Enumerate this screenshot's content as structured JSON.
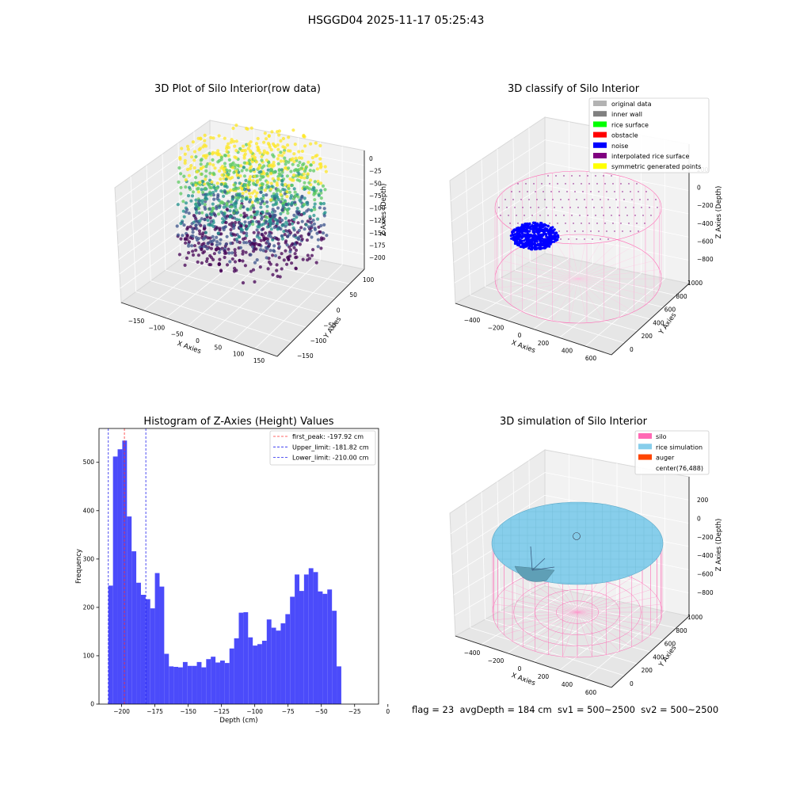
{
  "figure": {
    "suptitle": "HSGGD04 2025-11-17 05:25:43",
    "status_text": "flag = 23  avgDepth = 184 cm  sv1 = 500~2500  sv2 = 500~2500"
  },
  "chart_data": [
    {
      "type": "scatter",
      "title": "3D Plot of Silo Interior(row data)",
      "xlabel": "X Axies",
      "ylabel": "Y Axies",
      "zlabel": "Z Axies (Depth)",
      "x_ticks": [
        "−150",
        "−100",
        "−50",
        "0",
        "50",
        "100",
        "150"
      ],
      "y_ticks": [
        "100",
        "50",
        "0",
        "−50",
        "−100",
        "−150"
      ],
      "z_ticks": [
        "0",
        "−25",
        "−50",
        "−75",
        "−100",
        "−125",
        "−150",
        "−175",
        "−200"
      ],
      "colormap": [
        "#440154",
        "#3b528b",
        "#21918c",
        "#5ec962",
        "#fde725"
      ],
      "grid": true
    },
    {
      "type": "scatter",
      "title": "3D classify of Silo Interior",
      "xlabel": "X Axies",
      "ylabel": "Y Axies",
      "zlabel": "Z Axies (Depth)",
      "x_ticks": [
        "−400",
        "−200",
        "0",
        "200",
        "400",
        "600"
      ],
      "y_ticks": [
        "1000",
        "800",
        "600",
        "400",
        "200",
        "0"
      ],
      "z_ticks": [
        "200",
        "0",
        "−200",
        "−400",
        "−600",
        "−800"
      ],
      "legend": {
        "position": "top-right",
        "items": [
          {
            "label": "original data",
            "color": "#b3b3b3"
          },
          {
            "label": "inner wall",
            "color": "#808080"
          },
          {
            "label": "rice surface",
            "color": "#00ff00"
          },
          {
            "label": "obstacle",
            "color": "#ff0000"
          },
          {
            "label": "noise",
            "color": "#0000ff"
          },
          {
            "label": "interpolated rice surface",
            "color": "#800080"
          },
          {
            "label": "symmetric generated points",
            "color": "#ffff00"
          }
        ]
      },
      "grid": true
    },
    {
      "type": "bar",
      "title": "Histogram of Z-Axies (Height) Values",
      "xlabel": "Depth (cm)",
      "ylabel": "Frequency",
      "xlim": [
        -217,
        -7
      ],
      "ylim": [
        0,
        570
      ],
      "x_ticks": [
        -200,
        -175,
        -150,
        -125,
        -100,
        -75,
        -50,
        -25,
        0
      ],
      "x_tick_labels": [
        "−200",
        "−175",
        "−150",
        "−125",
        "−100",
        "−75",
        "−50",
        "−25",
        "0"
      ],
      "y_ticks": [
        0,
        100,
        200,
        300,
        400,
        500
      ],
      "bin_start": -210,
      "bin_width": 3.5,
      "values": [
        245,
        512,
        527,
        545,
        388,
        316,
        251,
        226,
        217,
        198,
        271,
        243,
        104,
        78,
        77,
        76,
        87,
        79,
        79,
        87,
        76,
        93,
        98,
        86,
        90,
        85,
        115,
        136,
        189,
        190,
        138,
        121,
        124,
        131,
        175,
        158,
        152,
        167,
        186,
        222,
        268,
        234,
        268,
        281,
        273,
        233,
        228,
        237,
        193,
        78
      ],
      "bar_color": "#4b4bfa",
      "lines": [
        {
          "label": "first_peak: -197.92 cm",
          "x": -197.92,
          "color": "#ff3333"
        },
        {
          "label": "Upper_limit: -181.82 cm",
          "x": -181.82,
          "color": "#2222ee"
        },
        {
          "label": "Lower_limit: -210.00 cm",
          "x": -210.0,
          "color": "#2222ee"
        }
      ],
      "legend_position": "top-right"
    },
    {
      "type": "surface",
      "title": "3D simulation of Silo Interior",
      "xlabel": "X Axies",
      "ylabel": "Y Axies",
      "zlabel": "Z Axies (Depth)",
      "x_ticks": [
        "−400",
        "−200",
        "0",
        "200",
        "400",
        "600"
      ],
      "y_ticks": [
        "1000",
        "800",
        "600",
        "400",
        "200",
        "0"
      ],
      "z_ticks": [
        "200",
        "0",
        "−200",
        "−400",
        "−600",
        "−800"
      ],
      "legend": {
        "position": "top-right",
        "items": [
          {
            "label": "silo",
            "color": "#ff69b4"
          },
          {
            "label": "rice simulation",
            "color": "#87ceeb"
          },
          {
            "label": "auger",
            "color": "#ff4500"
          },
          {
            "label": "center(76,488)",
            "color": ""
          }
        ]
      },
      "grid": true
    }
  ]
}
